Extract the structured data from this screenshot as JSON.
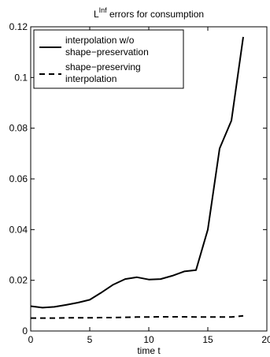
{
  "chart_data": {
    "type": "line",
    "title_main": "L",
    "title_sup": "Inf",
    "title_rest": " errors for consumption",
    "xlabel": "time t",
    "ylabel": "",
    "xlim": [
      0,
      20
    ],
    "ylim": [
      0,
      0.12
    ],
    "xticks": [
      0,
      5,
      10,
      15,
      20
    ],
    "xtick_labels": [
      "0",
      "5",
      "10",
      "15",
      "20"
    ],
    "yticks": [
      0,
      0.02,
      0.04,
      0.06,
      0.08,
      0.1,
      0.12
    ],
    "ytick_labels": [
      "0",
      "0.02",
      "0.04",
      "0.06",
      "0.08",
      "0.1",
      "0.12"
    ],
    "grid": false,
    "legend_position": "top-left",
    "series": [
      {
        "name_line1": "interpolation w/o",
        "name_line2": "shape−preservation",
        "style": "solid",
        "color": "#000000",
        "x": [
          0,
          1,
          2,
          3,
          4,
          5,
          6,
          7,
          8,
          9,
          10,
          11,
          12,
          13,
          14,
          15,
          16,
          17,
          18
        ],
        "y": [
          0.0098,
          0.0092,
          0.0095,
          0.0103,
          0.0112,
          0.0123,
          0.0152,
          0.0183,
          0.0205,
          0.0212,
          0.0203,
          0.0205,
          0.0218,
          0.0235,
          0.024,
          0.04,
          0.072,
          0.083,
          0.116
        ]
      },
      {
        "name_line1": "shape−preserving",
        "name_line2": "interpolation",
        "style": "dashed",
        "color": "#000000",
        "x": [
          0,
          1,
          2,
          3,
          4,
          5,
          6,
          7,
          8,
          9,
          10,
          11,
          12,
          13,
          14,
          15,
          16,
          17,
          18
        ],
        "y": [
          0.0051,
          0.0051,
          0.0051,
          0.0052,
          0.0052,
          0.0052,
          0.0053,
          0.0053,
          0.0054,
          0.0055,
          0.0055,
          0.0056,
          0.0056,
          0.0056,
          0.0055,
          0.0055,
          0.0055,
          0.0055,
          0.006
        ]
      }
    ]
  }
}
